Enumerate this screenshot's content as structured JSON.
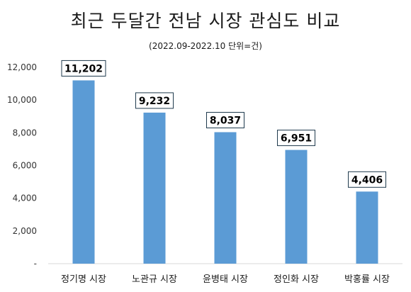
{
  "chart_data": {
    "type": "bar",
    "title": "최근 두달간 전남 시장 관심도 비교",
    "subtitle": "(2022.09-2022.10 단위=건)",
    "categories": [
      "정기명 시장",
      "노관규 시장",
      "윤병태 시장",
      "정인화 시장",
      "박홍률 시장"
    ],
    "values": [
      11202,
      9232,
      8037,
      6951,
      4406
    ],
    "data_labels": [
      "11,202",
      "9,232",
      "8,037",
      "6,951",
      "4,406"
    ],
    "ylim": [
      0,
      12000
    ],
    "yticks": [
      0,
      2000,
      4000,
      6000,
      8000,
      10000,
      12000
    ],
    "ytick_labels": [
      "-",
      "2,000",
      "4,000",
      "6,000",
      "8,000",
      "10,000",
      "12,000"
    ],
    "grid": false,
    "legend": "none",
    "bar_color": "#5b9bd5"
  }
}
